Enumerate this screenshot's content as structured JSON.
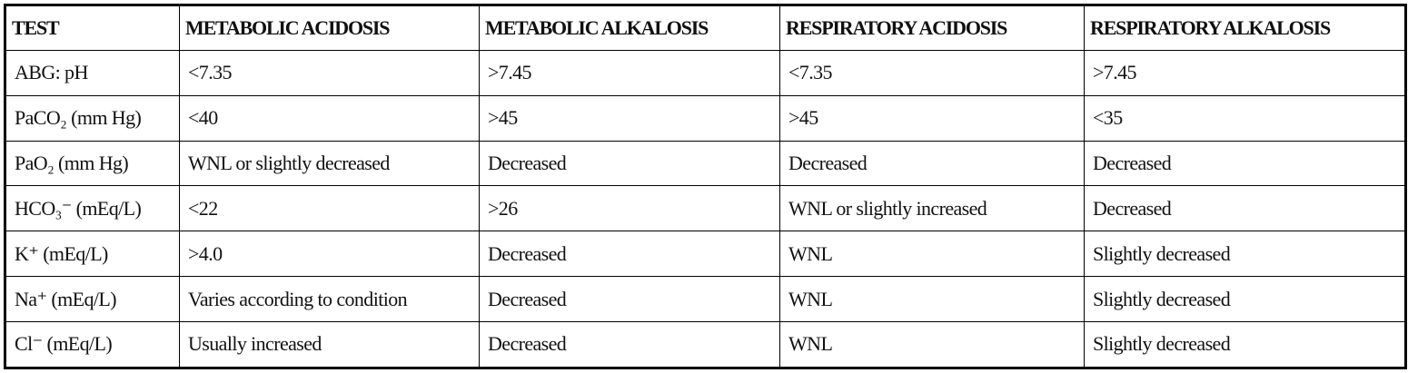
{
  "table": {
    "header": [
      "TEST",
      "METABOLIC ACIDOSIS",
      "METABOLIC ALKALOSIS",
      "RESPIRATORY ACIDOSIS",
      "RESPIRATORY ALKALOSIS"
    ],
    "rows": [
      [
        "ABG: pH",
        "<7.35",
        ">7.45",
        "<7.35",
        ">7.45"
      ],
      [
        "PaCO₂ (mm Hg)",
        "<40",
        ">45",
        ">45",
        "<35"
      ],
      [
        "PaO₂ (mm Hg)",
        "WNL or slightly decreased",
        "Decreased",
        "Decreased",
        "Decreased"
      ],
      [
        "HCO₃⁻ (mEq/L)",
        "<22",
        ">26",
        "WNL or slightly increased",
        "Decreased"
      ],
      [
        "K⁺ (mEq/L)",
        ">4.0",
        "Decreased",
        "WNL",
        "Slightly decreased"
      ],
      [
        "Na⁺ (mEq/L)",
        "Varies according to condition",
        "Decreased",
        "WNL",
        "Slightly decreased"
      ],
      [
        "Cl⁻ (mEq/L)",
        "Usually increased",
        "Decreased",
        "WNL",
        "Slightly decreased"
      ]
    ]
  }
}
